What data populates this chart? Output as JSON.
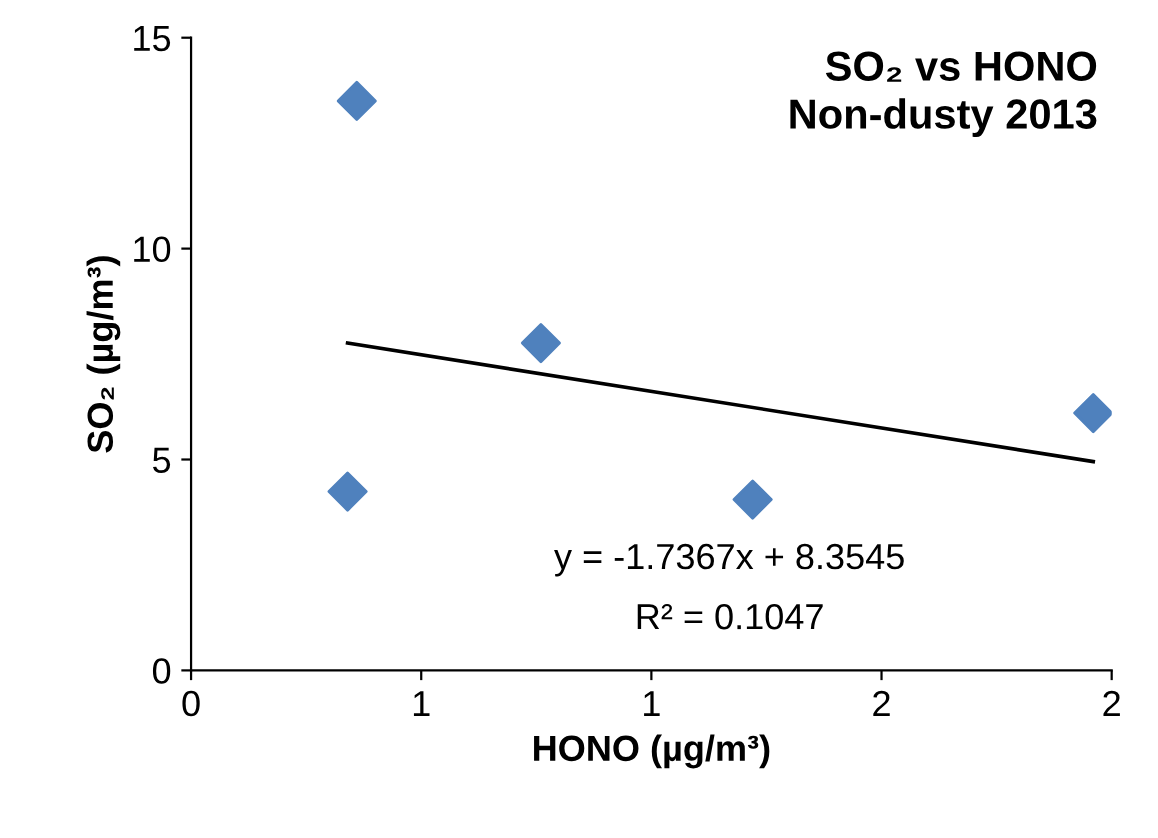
{
  "chart_data": {
    "type": "scatter",
    "title": "SO₂ vs HONO\nNon-dusty 2013",
    "xlabel": "HONO (µg/m³)",
    "ylabel": "SO₂ (µg/m³)",
    "series": [
      {
        "color": "#4f81bd",
        "marker": "diamond",
        "x": [
          0.34,
          0.36,
          0.76,
          1.22,
          1.96
        ],
        "values": [
          4.24,
          13.5,
          7.76,
          4.05,
          6.1
        ]
      },
      {
        "type": "line",
        "color": "#000000",
        "marker": "none",
        "x": [
          0.34,
          1.96
        ],
        "values": [
          7.76,
          4.95
        ]
      }
    ],
    "annotations": [
      "y = -1.7367x + 8.3545",
      "R² = 0.1047"
    ],
    "xlim": [
      0,
      2
    ],
    "xticks": [
      0,
      {
        "value": 0.5,
        "label": "1"
      },
      1,
      {
        "value": 1.5,
        "label": "2"
      },
      2
    ],
    "ylim": [
      0,
      15
    ],
    "yticks": [
      0,
      5,
      10,
      15
    ],
    "grid": false,
    "legend": false
  }
}
